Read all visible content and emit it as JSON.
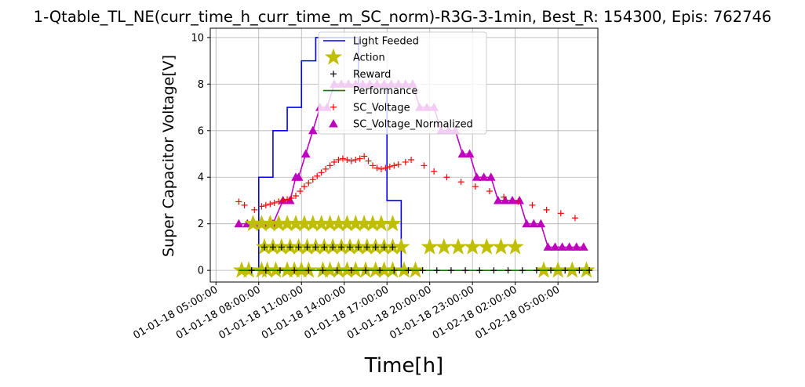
{
  "chart_data": {
    "type": "line",
    "title": "1-Qtable_TL_NE(curr_time_h_curr_time_m_SC_norm)-R3G-3-1min, Best_R: 154300, Epis: 762746",
    "xlabel": "Time[h]",
    "ylabel": "Super Capacitor Voltage[V]",
    "x_unit": "hours since 01-01-18 00:00",
    "xlim": [
      4.6,
      31.8
    ],
    "ylim": [
      -0.5,
      10.4
    ],
    "grid": true,
    "legend_position": "upper center",
    "x_ticks": [
      {
        "x": 5,
        "label": "01-01-18 05:00:00"
      },
      {
        "x": 8,
        "label": "01-01-18 08:00:00"
      },
      {
        "x": 11,
        "label": "01-01-18 11:00:00"
      },
      {
        "x": 14,
        "label": "01-01-18 14:00:00"
      },
      {
        "x": 17,
        "label": "01-01-18 17:00:00"
      },
      {
        "x": 20,
        "label": "01-01-18 20:00:00"
      },
      {
        "x": 23,
        "label": "01-01-18 23:00:00"
      },
      {
        "x": 26,
        "label": "01-02-18 02:00:00"
      },
      {
        "x": 29,
        "label": "01-02-18 05:00:00"
      }
    ],
    "y_ticks": [
      0,
      2,
      4,
      6,
      8,
      10
    ],
    "series": [
      {
        "name": "Light Feeded",
        "style": "step",
        "color": "#0000ff",
        "x": [
          6.6,
          8.0,
          9.0,
          10.0,
          11.0,
          12.0,
          13.0,
          14.0,
          15.0,
          16.0,
          17.0,
          18.0,
          18.6
        ],
        "y": [
          0,
          4,
          6,
          7,
          9,
          10,
          10,
          10,
          8,
          8,
          3,
          0,
          0
        ]
      },
      {
        "name": "Action",
        "style": "star",
        "color": "#bfbf00",
        "points": [
          [
            6.8,
            0
          ],
          [
            7.3,
            0
          ],
          [
            8.2,
            0
          ],
          [
            8.6,
            0
          ],
          [
            9.2,
            0
          ],
          [
            10.0,
            0
          ],
          [
            10.5,
            0
          ],
          [
            11.0,
            0
          ],
          [
            11.5,
            0
          ],
          [
            12.5,
            0
          ],
          [
            13.0,
            0
          ],
          [
            13.6,
            0
          ],
          [
            14.2,
            0
          ],
          [
            14.8,
            0
          ],
          [
            15.5,
            0
          ],
          [
            16.2,
            0
          ],
          [
            16.8,
            0
          ],
          [
            17.4,
            0
          ],
          [
            18.2,
            0
          ],
          [
            19.0,
            0
          ],
          [
            28.0,
            0
          ],
          [
            29.0,
            0
          ],
          [
            30.0,
            0
          ],
          [
            31.0,
            0
          ],
          [
            8.4,
            1
          ],
          [
            9.0,
            1
          ],
          [
            9.6,
            1
          ],
          [
            10.2,
            1
          ],
          [
            10.8,
            1
          ],
          [
            11.4,
            1
          ],
          [
            12.0,
            1
          ],
          [
            12.6,
            1
          ],
          [
            13.2,
            1
          ],
          [
            13.8,
            1
          ],
          [
            14.4,
            1
          ],
          [
            15.0,
            1
          ],
          [
            15.6,
            1
          ],
          [
            16.2,
            1
          ],
          [
            16.8,
            1
          ],
          [
            17.4,
            1
          ],
          [
            18.0,
            1
          ],
          [
            20.0,
            1
          ],
          [
            21.0,
            1
          ],
          [
            22.0,
            1
          ],
          [
            23.0,
            1
          ],
          [
            24.0,
            1
          ],
          [
            25.0,
            1
          ],
          [
            26.0,
            1
          ],
          [
            7.6,
            2
          ],
          [
            8.2,
            2
          ],
          [
            8.8,
            2
          ],
          [
            9.4,
            2
          ],
          [
            10.0,
            2
          ],
          [
            10.6,
            2
          ],
          [
            11.2,
            2
          ],
          [
            11.8,
            2
          ],
          [
            12.4,
            2
          ],
          [
            13.0,
            2
          ],
          [
            13.6,
            2
          ],
          [
            14.2,
            2
          ],
          [
            14.8,
            2
          ],
          [
            15.4,
            2
          ],
          [
            16.0,
            2
          ],
          [
            16.6,
            2
          ],
          [
            17.4,
            2
          ]
        ]
      },
      {
        "name": "Reward",
        "style": "plus",
        "color": "#000000",
        "points": [
          [
            7.5,
            0
          ],
          [
            8.5,
            0
          ],
          [
            9.5,
            0
          ],
          [
            10.5,
            0
          ],
          [
            11.5,
            0
          ],
          [
            12.5,
            0
          ],
          [
            13.5,
            0
          ],
          [
            14.5,
            0
          ],
          [
            15.5,
            0
          ],
          [
            16.5,
            0
          ],
          [
            17.5,
            0
          ],
          [
            18.5,
            0
          ],
          [
            19.5,
            0
          ],
          [
            20.5,
            0
          ],
          [
            21.5,
            0
          ],
          [
            22.5,
            0
          ],
          [
            23.5,
            0
          ],
          [
            24.5,
            0
          ],
          [
            25.5,
            0
          ],
          [
            26.5,
            0
          ],
          [
            27.5,
            0
          ],
          [
            28.5,
            0
          ],
          [
            29.5,
            0
          ],
          [
            30.5,
            0
          ],
          [
            31.2,
            0
          ],
          [
            8.4,
            1
          ],
          [
            9.0,
            1
          ],
          [
            9.6,
            1
          ],
          [
            10.2,
            1
          ],
          [
            10.8,
            1
          ],
          [
            11.4,
            1
          ],
          [
            12.0,
            1
          ],
          [
            12.6,
            1
          ],
          [
            13.2,
            1
          ],
          [
            13.8,
            1
          ],
          [
            14.4,
            1
          ],
          [
            15.0,
            1
          ],
          [
            15.6,
            1
          ],
          [
            16.2,
            1
          ],
          [
            16.8,
            1
          ],
          [
            17.4,
            1
          ]
        ]
      },
      {
        "name": "Performance",
        "style": "line",
        "color": "#008000",
        "x": [
          6.6,
          31.2
        ],
        "y": [
          0,
          0
        ]
      },
      {
        "name": "SC_Voltage",
        "style": "plus",
        "color": "#ff0000",
        "points": [
          [
            6.6,
            2.95
          ],
          [
            7.0,
            2.8
          ],
          [
            7.7,
            2.6
          ],
          [
            8.2,
            2.75
          ],
          [
            8.5,
            2.8
          ],
          [
            8.8,
            2.85
          ],
          [
            9.1,
            2.9
          ],
          [
            9.4,
            2.95
          ],
          [
            9.7,
            3.0
          ],
          [
            10.0,
            3.05
          ],
          [
            10.3,
            3.1
          ],
          [
            10.6,
            3.2
          ],
          [
            10.9,
            3.4
          ],
          [
            11.2,
            3.6
          ],
          [
            11.5,
            3.75
          ],
          [
            11.8,
            3.9
          ],
          [
            12.1,
            4.05
          ],
          [
            12.4,
            4.2
          ],
          [
            12.7,
            4.35
          ],
          [
            13.0,
            4.5
          ],
          [
            13.3,
            4.65
          ],
          [
            13.6,
            4.75
          ],
          [
            13.9,
            4.8
          ],
          [
            14.2,
            4.75
          ],
          [
            14.5,
            4.7
          ],
          [
            14.8,
            4.75
          ],
          [
            15.1,
            4.8
          ],
          [
            15.4,
            4.9
          ],
          [
            15.7,
            4.7
          ],
          [
            16.0,
            4.5
          ],
          [
            16.3,
            4.4
          ],
          [
            16.6,
            4.35
          ],
          [
            16.9,
            4.4
          ],
          [
            17.2,
            4.45
          ],
          [
            17.5,
            4.5
          ],
          [
            17.8,
            4.55
          ],
          [
            18.3,
            4.65
          ],
          [
            18.7,
            4.75
          ],
          [
            19.6,
            4.5
          ],
          [
            20.3,
            4.25
          ],
          [
            21.2,
            4.0
          ],
          [
            22.2,
            3.8
          ],
          [
            23.2,
            3.6
          ],
          [
            24.2,
            3.4
          ],
          [
            25.2,
            3.15
          ],
          [
            26.2,
            2.95
          ],
          [
            27.2,
            2.8
          ],
          [
            28.2,
            2.6
          ],
          [
            29.2,
            2.45
          ],
          [
            30.2,
            2.25
          ]
        ]
      },
      {
        "name": "SC_Voltage_Normalized",
        "style": "triangle",
        "color": "#bf00bf",
        "x": [
          6.6,
          7.2,
          7.7,
          8.3,
          9.0,
          9.7,
          10.2,
          10.6,
          10.8,
          11.3,
          11.8,
          12.3,
          12.8,
          13.3,
          13.8,
          14.3,
          14.8,
          15.3,
          15.8,
          16.3,
          16.8,
          17.3,
          17.8,
          18.3,
          18.8,
          19.3,
          19.8,
          20.3,
          20.8,
          21.3,
          21.8,
          22.3,
          22.8,
          23.3,
          23.8,
          24.3,
          24.8,
          25.3,
          25.8,
          26.3,
          26.8,
          27.3,
          27.8,
          28.3,
          28.8,
          29.3,
          29.8,
          30.3,
          30.8
        ],
        "y": [
          2,
          2,
          2,
          2,
          2,
          3,
          3,
          4,
          4,
          5,
          6,
          7,
          7,
          8,
          8,
          8,
          8,
          8,
          8,
          8,
          8,
          8,
          8,
          8,
          8,
          7,
          7,
          7,
          6,
          6,
          6,
          5,
          5,
          4,
          4,
          4,
          3,
          3,
          3,
          3,
          2,
          2,
          2,
          1,
          1,
          1,
          1,
          1,
          1
        ]
      }
    ]
  }
}
